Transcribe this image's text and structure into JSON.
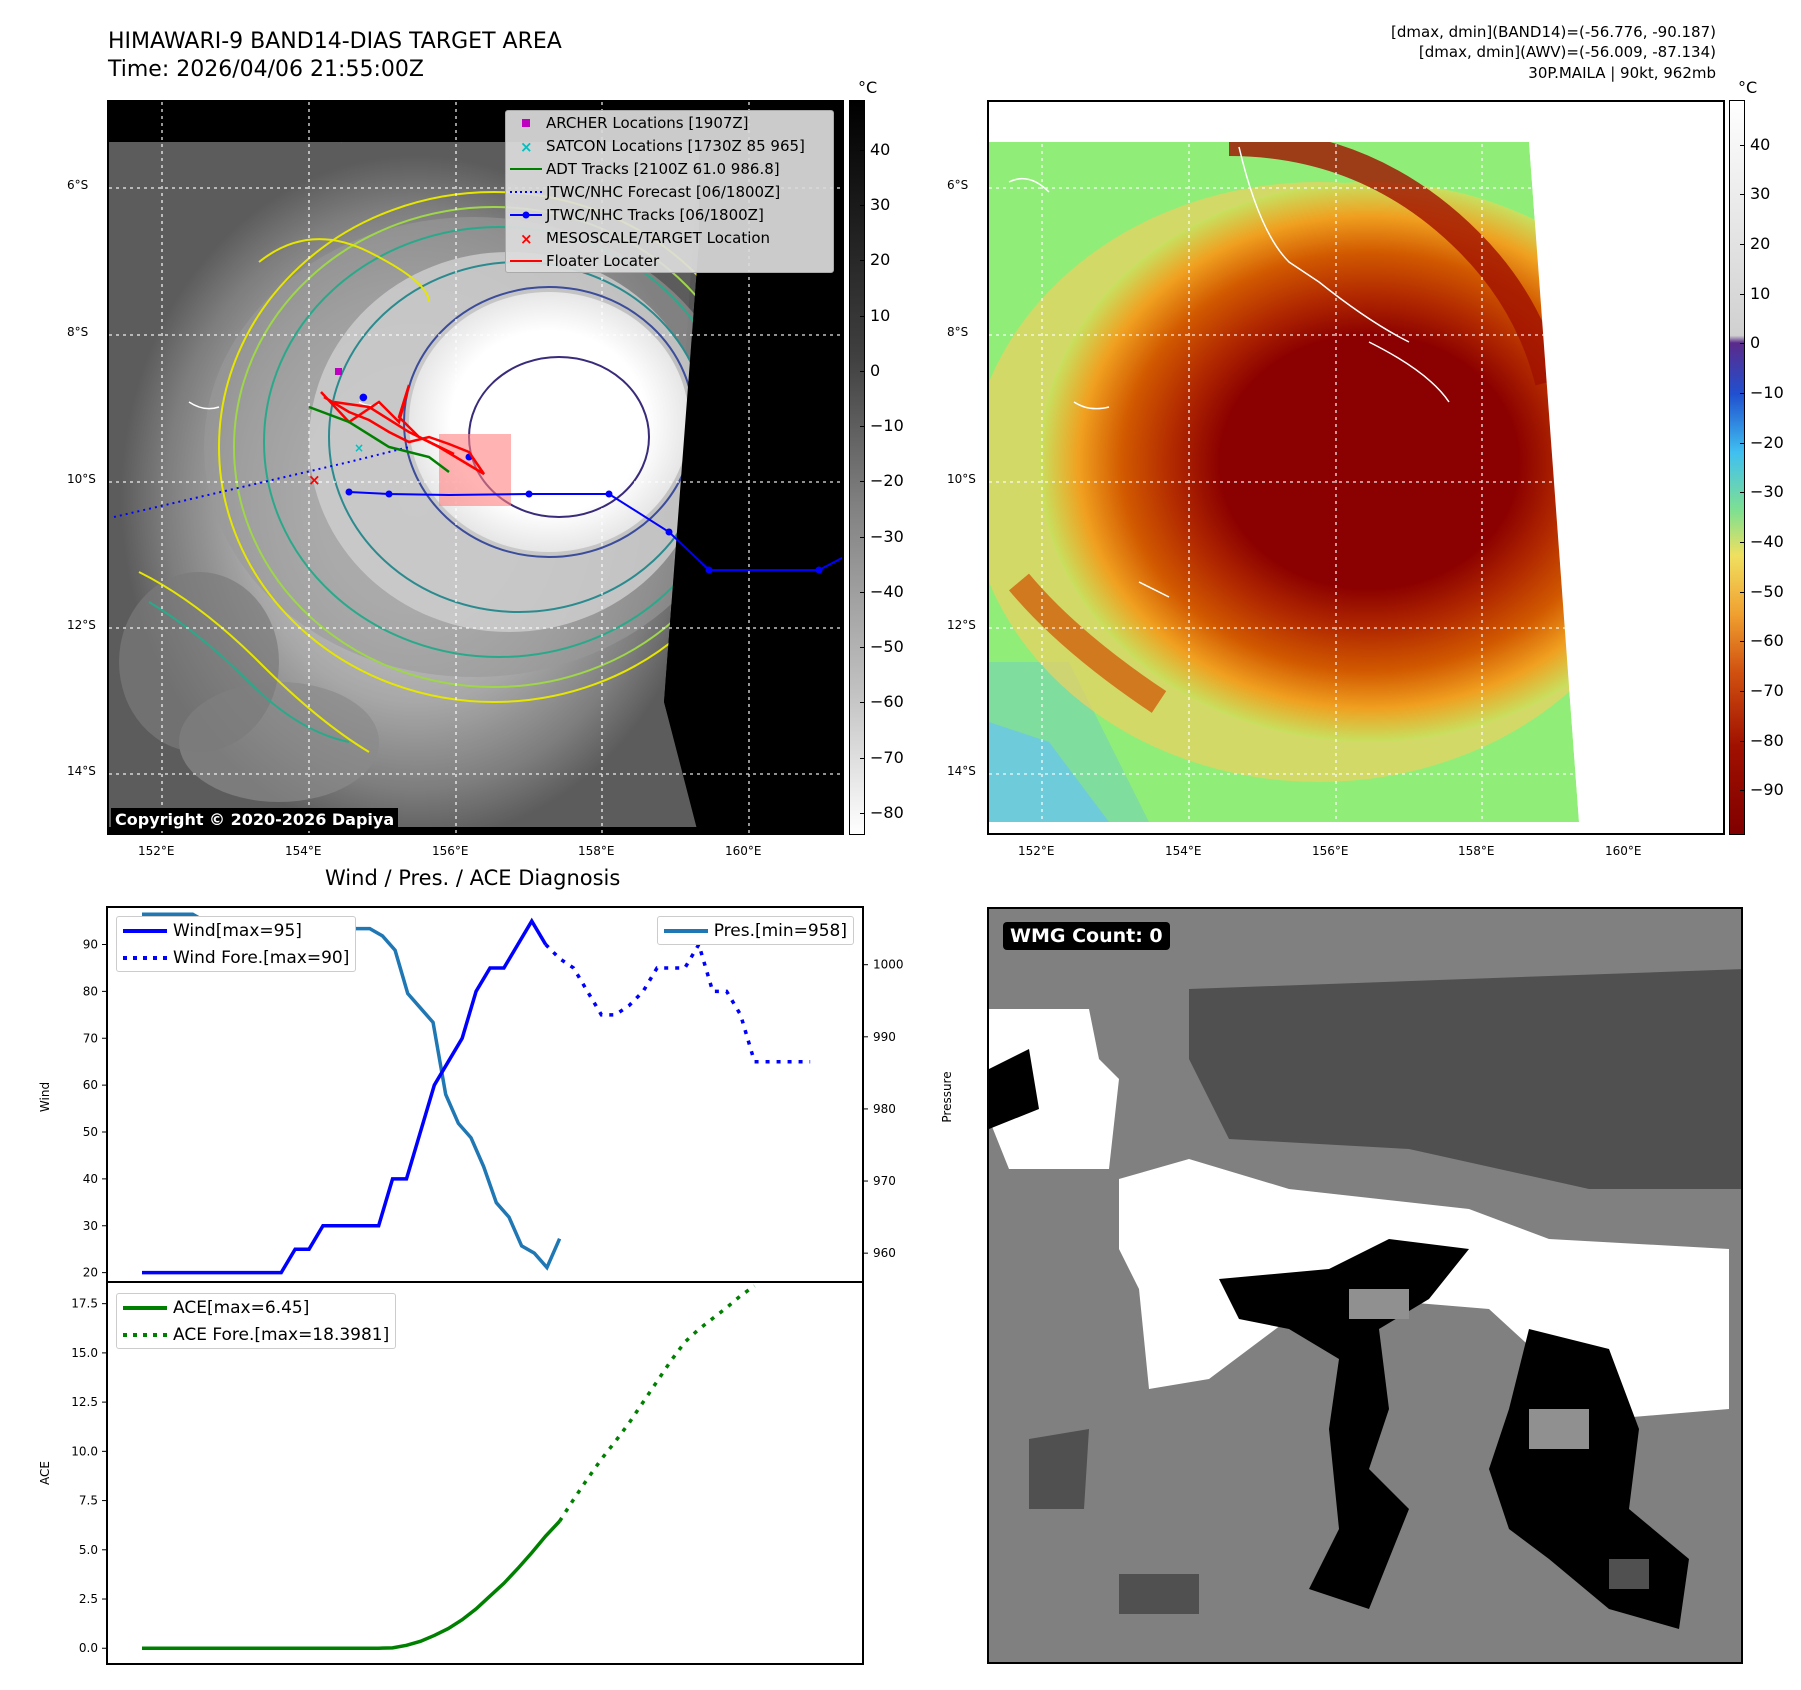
{
  "header": {
    "title": "HIMAWARI-9 BAND14-DIAS TARGET AREA",
    "time": "Time: 2026/04/06 21:55:00Z",
    "info_line1": "[dmax, dmin](BAND14)=(-56.776, -90.187)",
    "info_line2": "[dmax, dmin](AWV)=(-56.009, -87.134)",
    "info_line3": "30P.MAILA | 90kt, 962mb"
  },
  "map": {
    "lat_labels": [
      "6°S",
      "8°S",
      "10°S",
      "12°S",
      "14°S"
    ],
    "lon_labels": [
      "152°E",
      "154°E",
      "156°E",
      "158°E",
      "160°E"
    ],
    "copyright": "Copyright © 2020-2026 Dapiya",
    "legend": [
      {
        "label": "ARCHER Locations [1907Z]",
        "color": "#c000c0",
        "marker": "square"
      },
      {
        "label": "SATCON Locations [1730Z 85 965]",
        "color": "#00c0c0",
        "marker": "x"
      },
      {
        "label": "ADT Tracks [2100Z 61.0 986.8]",
        "color": "#008000",
        "marker": "line"
      },
      {
        "label": "JTWC/NHC Forecast [06/1800Z]",
        "color": "#0000ff",
        "marker": "dotted"
      },
      {
        "label": "JTWC/NHC Tracks [06/1800Z]",
        "color": "#0000ff",
        "marker": "line-dot"
      },
      {
        "label": "MESOSCALE/TARGET Location",
        "color": "#ff0000",
        "marker": "x"
      },
      {
        "label": "Floater Locater",
        "color": "#ff0000",
        "marker": "line"
      }
    ]
  },
  "colorbar_left": {
    "unit": "°C",
    "ticks": [
      "40",
      "30",
      "20",
      "10",
      "0",
      "−10",
      "−20",
      "−30",
      "−40",
      "−50",
      "−60",
      "−70",
      "−80"
    ]
  },
  "colorbar_right": {
    "unit": "°C",
    "ticks": [
      "40",
      "30",
      "20",
      "10",
      "0",
      "−10",
      "−20",
      "−30",
      "−40",
      "−50",
      "−60",
      "−70",
      "−80",
      "−90"
    ]
  },
  "wind_title": "Wind / Pres. / ACE Diagnosis",
  "wmg_label": "WMG Count: 0",
  "chart_data": [
    {
      "type": "line",
      "title": "Wind / Pres. / ACE Diagnosis",
      "ylabel": "Wind",
      "y2label": "Pressure",
      "ylim": [
        18,
        98
      ],
      "y2lim": [
        956,
        1008
      ],
      "yticks": [
        20,
        30,
        40,
        50,
        60,
        70,
        80,
        90
      ],
      "y2ticks": [
        960,
        970,
        980,
        990,
        1000
      ],
      "series": [
        {
          "name": "Wind[max=95]",
          "axis": "left",
          "color": "#0000ff",
          "style": "solid",
          "values": [
            20,
            20,
            20,
            20,
            20,
            20,
            20,
            20,
            20,
            20,
            20,
            25,
            25,
            30,
            30,
            30,
            30,
            30,
            40,
            40,
            50,
            60,
            65,
            70,
            80,
            85,
            85,
            90,
            95,
            90
          ]
        },
        {
          "name": "Wind Fore.[max=90]",
          "axis": "left",
          "color": "#0000ff",
          "style": "dotted",
          "x_offset": 29,
          "values": [
            90,
            87,
            85,
            80,
            75,
            75,
            77,
            80,
            85,
            85,
            85,
            90,
            80,
            80,
            75,
            65,
            65,
            65,
            65,
            65
          ]
        },
        {
          "name": "Pres.[min=958]",
          "axis": "right",
          "color": "#1f77b4",
          "style": "solid",
          "values": [
            1007,
            1007,
            1007,
            1007,
            1007,
            1006,
            1006,
            1006,
            1006,
            1006,
            1006,
            1006,
            1006,
            1006,
            1005,
            1005,
            1005,
            1005,
            1005,
            1004,
            1002,
            996,
            994,
            992,
            982,
            978,
            976,
            972,
            967,
            965,
            961,
            960,
            958,
            962
          ]
        }
      ]
    },
    {
      "type": "line",
      "ylabel": "ACE",
      "ylim": [
        -0.8,
        18.6
      ],
      "yticks": [
        0.0,
        2.5,
        5.0,
        7.5,
        10.0,
        12.5,
        15.0,
        17.5
      ],
      "series": [
        {
          "name": "ACE[max=6.45]",
          "color": "#008000",
          "style": "solid",
          "values": [
            0,
            0,
            0,
            0,
            0,
            0,
            0,
            0,
            0,
            0,
            0,
            0,
            0,
            0,
            0,
            0,
            0,
            0,
            0.02,
            0.15,
            0.35,
            0.65,
            1.0,
            1.45,
            2.0,
            2.65,
            3.3,
            4.05,
            4.85,
            5.7,
            6.45
          ]
        },
        {
          "name": "ACE Fore.[max=18.3981]",
          "color": "#008000",
          "style": "dotted",
          "x_offset": 30,
          "values": [
            6.45,
            7.55,
            8.6,
            9.6,
            10.5,
            11.45,
            12.5,
            13.55,
            14.6,
            15.55,
            16.2,
            16.75,
            17.3,
            17.9,
            18.4
          ]
        }
      ]
    }
  ]
}
